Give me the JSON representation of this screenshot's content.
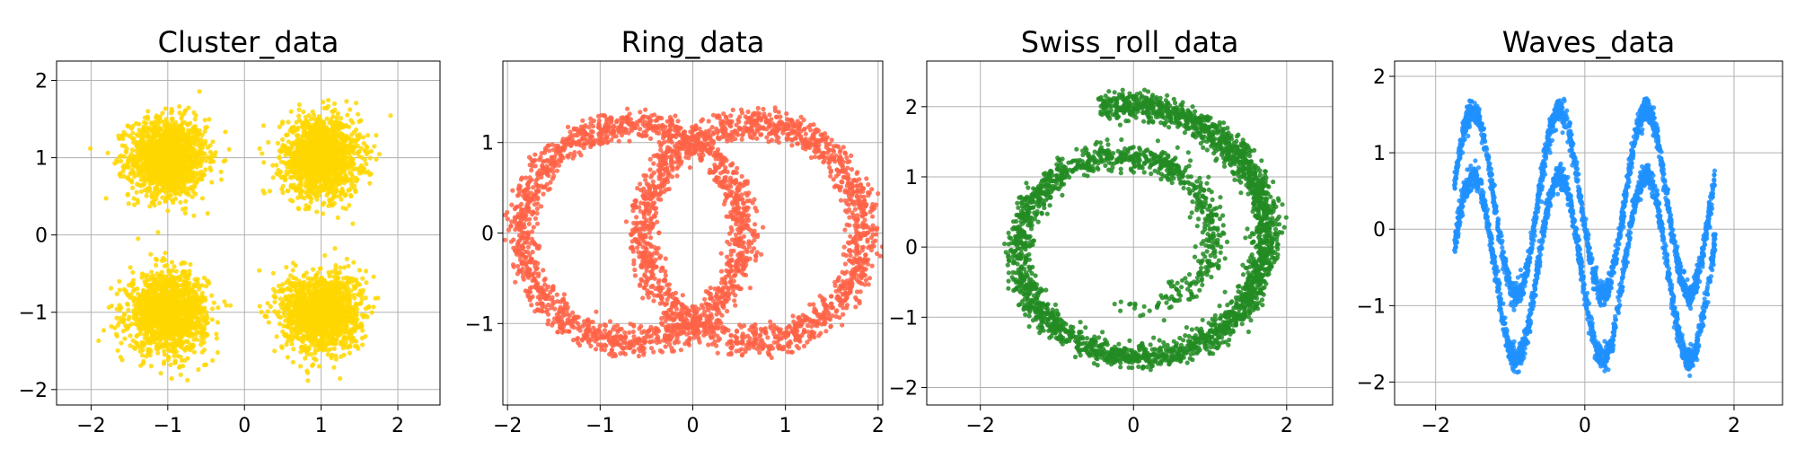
{
  "chart_data": [
    {
      "type": "scatter",
      "title": "Cluster_data",
      "color": "#FFD700",
      "grid": true,
      "xlim": [
        -2.45,
        2.55
      ],
      "ylim": [
        -2.2,
        2.25
      ],
      "xticks": [
        -2,
        -1,
        0,
        1,
        2
      ],
      "yticks": [
        -2,
        -1,
        0,
        1,
        2
      ],
      "shape": "gaussian_clusters",
      "centers": [
        [
          -1,
          1
        ],
        [
          1,
          1
        ],
        [
          -1,
          -1
        ],
        [
          1,
          -1
        ]
      ],
      "std": 0.25,
      "points_per_series": 1500
    },
    {
      "type": "scatter",
      "title": "Ring_data",
      "color": "#FF6347",
      "grid": true,
      "xlim": [
        -2.05,
        2.05
      ],
      "ylim": [
        -1.9,
        1.9
      ],
      "xticks": [
        -2,
        -1,
        0,
        1,
        2
      ],
      "yticks": [
        -1,
        0,
        1
      ],
      "shape": "two_rings",
      "centers": [
        [
          -0.65,
          0
        ],
        [
          0.65,
          0
        ]
      ],
      "radius": [
        1.0,
        1.4
      ],
      "points_per_series": 1600
    },
    {
      "type": "scatter",
      "title": "Swiss_roll_data",
      "color": "#228B22",
      "grid": true,
      "xlim": [
        -2.7,
        2.6
      ],
      "ylim": [
        -2.25,
        2.65
      ],
      "xticks": [
        -2,
        0,
        2
      ],
      "yticks": [
        -2,
        -1,
        0,
        1,
        2
      ],
      "shape": "spiral",
      "start_point": [
        -0.45,
        -0.7
      ],
      "end_point": [
        -0.45,
        2.0
      ],
      "points_per_series": 3000
    },
    {
      "type": "scatter",
      "title": "Waves_data",
      "color": "#1E90FF",
      "grid": true,
      "xlim": [
        -2.55,
        2.65
      ],
      "ylim": [
        -2.3,
        2.2
      ],
      "xticks": [
        -2,
        0,
        2
      ],
      "yticks": [
        -2,
        -1,
        0,
        1,
        2
      ],
      "shape": "two_sine_waves",
      "x_range": [
        -1.75,
        1.75
      ],
      "series": [
        {
          "amplitude": 1.5,
          "offset": 0.35
        },
        {
          "amplitude": 1.5,
          "offset": -0.5
        }
      ],
      "period": 1.16,
      "points_per_series": 1800
    }
  ]
}
